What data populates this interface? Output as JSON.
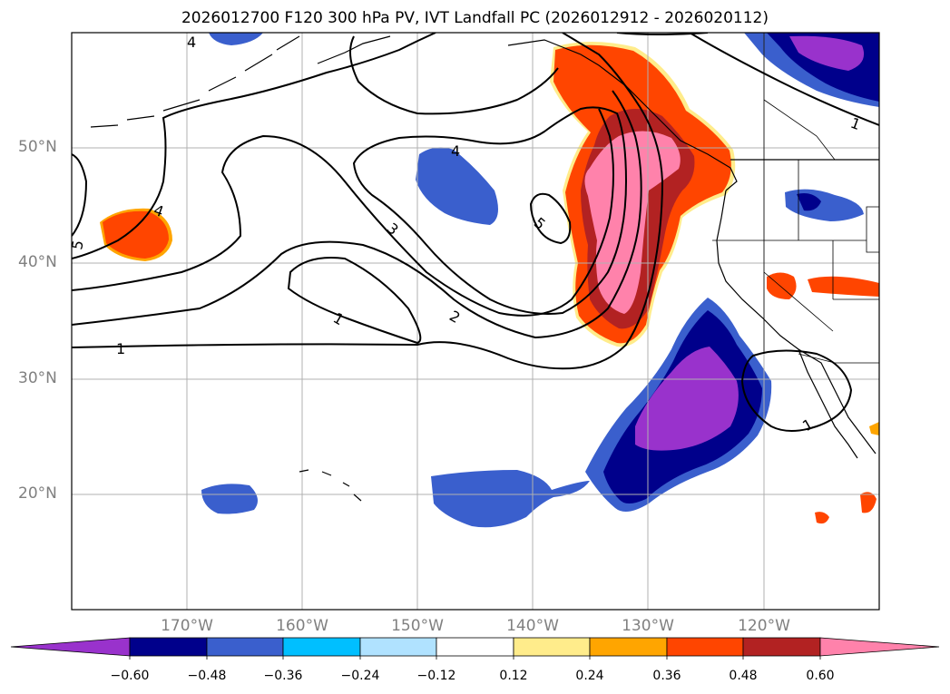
{
  "title": "2026012700 F120 300 hPa PV, IVT Landfall PC (2026012912 - 2026020112)",
  "map": {
    "projection": "PlateCarree",
    "lon_range": [
      -180,
      -110
    ],
    "lat_range": [
      10,
      60
    ],
    "gridline_color": "#b0b0b0",
    "lat_labels": [
      "50°N",
      "40°N",
      "30°N",
      "20°N"
    ],
    "lon_labels": [
      "170°W",
      "160°W",
      "150°W",
      "140°W",
      "130°W",
      "120°W"
    ]
  },
  "contours": {
    "field": "300 hPa PV",
    "color": "#000000",
    "labels": [
      "1",
      "1",
      "1",
      "2",
      "3",
      "4",
      "4",
      "4",
      "5",
      "5",
      "1"
    ]
  },
  "colorbar": {
    "extend": "both",
    "colors": [
      "#9932cc",
      "#00008b",
      "#3a5fcd",
      "#00bfff",
      "#b0e2ff",
      "#ffffff",
      "#ffec8b",
      "#ffa500",
      "#ff4500",
      "#b22222",
      "#ff82ab"
    ],
    "tick_labels": [
      "−0.60",
      "−0.48",
      "−0.36",
      "−0.24",
      "−0.12",
      "0.12",
      "0.24",
      "0.36",
      "0.48",
      "0.60"
    ]
  }
}
